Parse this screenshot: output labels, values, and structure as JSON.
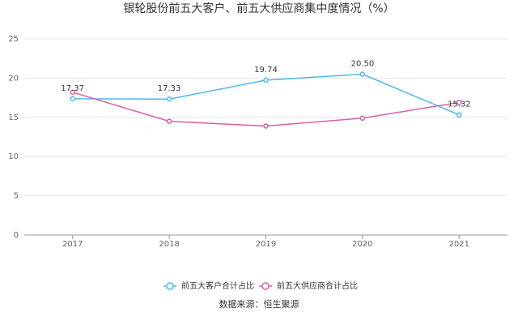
{
  "chart_data": {
    "type": "line",
    "title": "银轮股份前五大客户、前五大供应商集中度情况（%）",
    "categories": [
      "2017",
      "2018",
      "2019",
      "2020",
      "2021"
    ],
    "series": [
      {
        "name": "前五大客户合计占比",
        "color": "#4db8ec",
        "values": [
          17.37,
          17.33,
          19.74,
          20.5,
          15.32
        ],
        "labels": [
          "17.37",
          "17.33",
          "19.74",
          "20.50",
          "15.32"
        ]
      },
      {
        "name": "前五大供应商合计占比",
        "color": "#d85fa8",
        "values": [
          18.2,
          14.5,
          13.9,
          14.9,
          16.9
        ]
      }
    ],
    "yticks": [
      "0",
      "5",
      "10",
      "15",
      "20",
      "25"
    ],
    "ylim": [
      0,
      25
    ],
    "grid": true,
    "legend_position": "bottom"
  },
  "source": "数据来源：恒生聚源"
}
